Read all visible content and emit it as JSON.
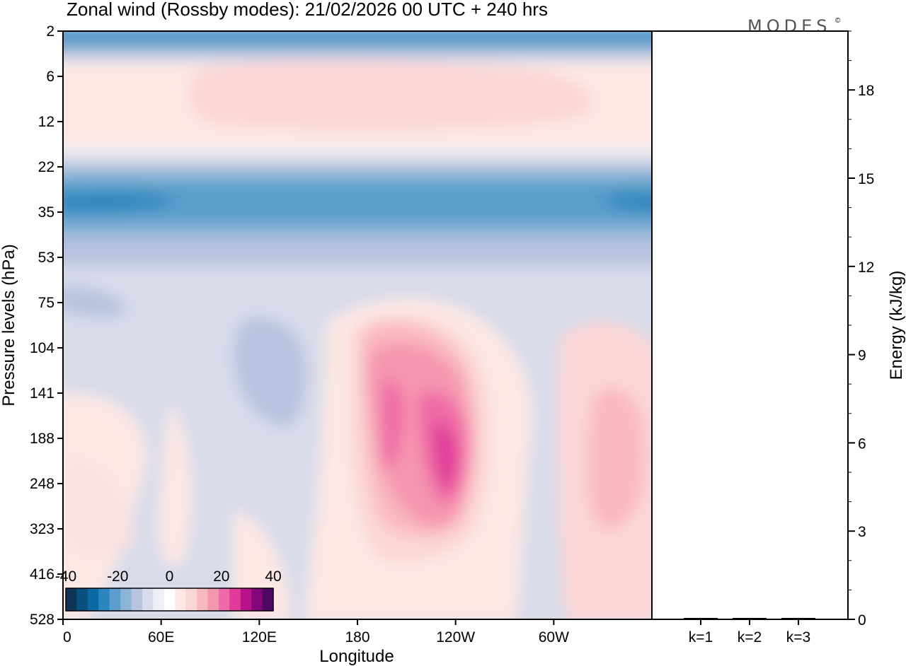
{
  "chart_data": [
    {
      "type": "heatmap",
      "title": "Zonal wind (Rossby modes):  21/02/2026  00 UTC  + 240 hrs",
      "xlabel": "Longitude",
      "ylabel": "Pressure levels (hPa)",
      "x_ticks": [
        "0",
        "60E",
        "120E",
        "180",
        "120W",
        "60W"
      ],
      "y_ticks": [
        "2",
        "6",
        "12",
        "22",
        "35",
        "53",
        "75",
        "104",
        "141",
        "188",
        "248",
        "323",
        "416",
        "528"
      ],
      "colorbar": {
        "ticks": [
          "-40",
          "-20",
          "0",
          "20",
          "40"
        ],
        "range": [
          -40,
          40
        ],
        "step": 5,
        "colors": [
          "#0d3556",
          "#08507f",
          "#0b6aa6",
          "#2d85bf",
          "#5a9fcb",
          "#8bb4d6",
          "#b7c3df",
          "#d8dbea",
          "#eeeef6",
          "#ffffff",
          "#fde8e4",
          "#fbd6d6",
          "#f9b8bf",
          "#f596b0",
          "#ef6aa6",
          "#df3a98",
          "#b61389",
          "#84087c",
          "#4d0a62"
        ]
      },
      "notable_features": [
        "easterly band near 35 hPa",
        "westerly maximum 180-100W near 141-248 hPa",
        "westerly band near 6-12 hPa"
      ]
    },
    {
      "type": "bar",
      "categories": [
        "k=1",
        "k=2",
        "k=3"
      ],
      "values": [
        0.02,
        0.02,
        0.02
      ],
      "ylabel": "Energy (kJ/kg)",
      "y_ticks": [
        "0",
        "3",
        "6",
        "9",
        "12",
        "15",
        "18"
      ],
      "ylim": [
        0,
        20
      ]
    }
  ],
  "logo": "MODES",
  "logo_mark": "©"
}
